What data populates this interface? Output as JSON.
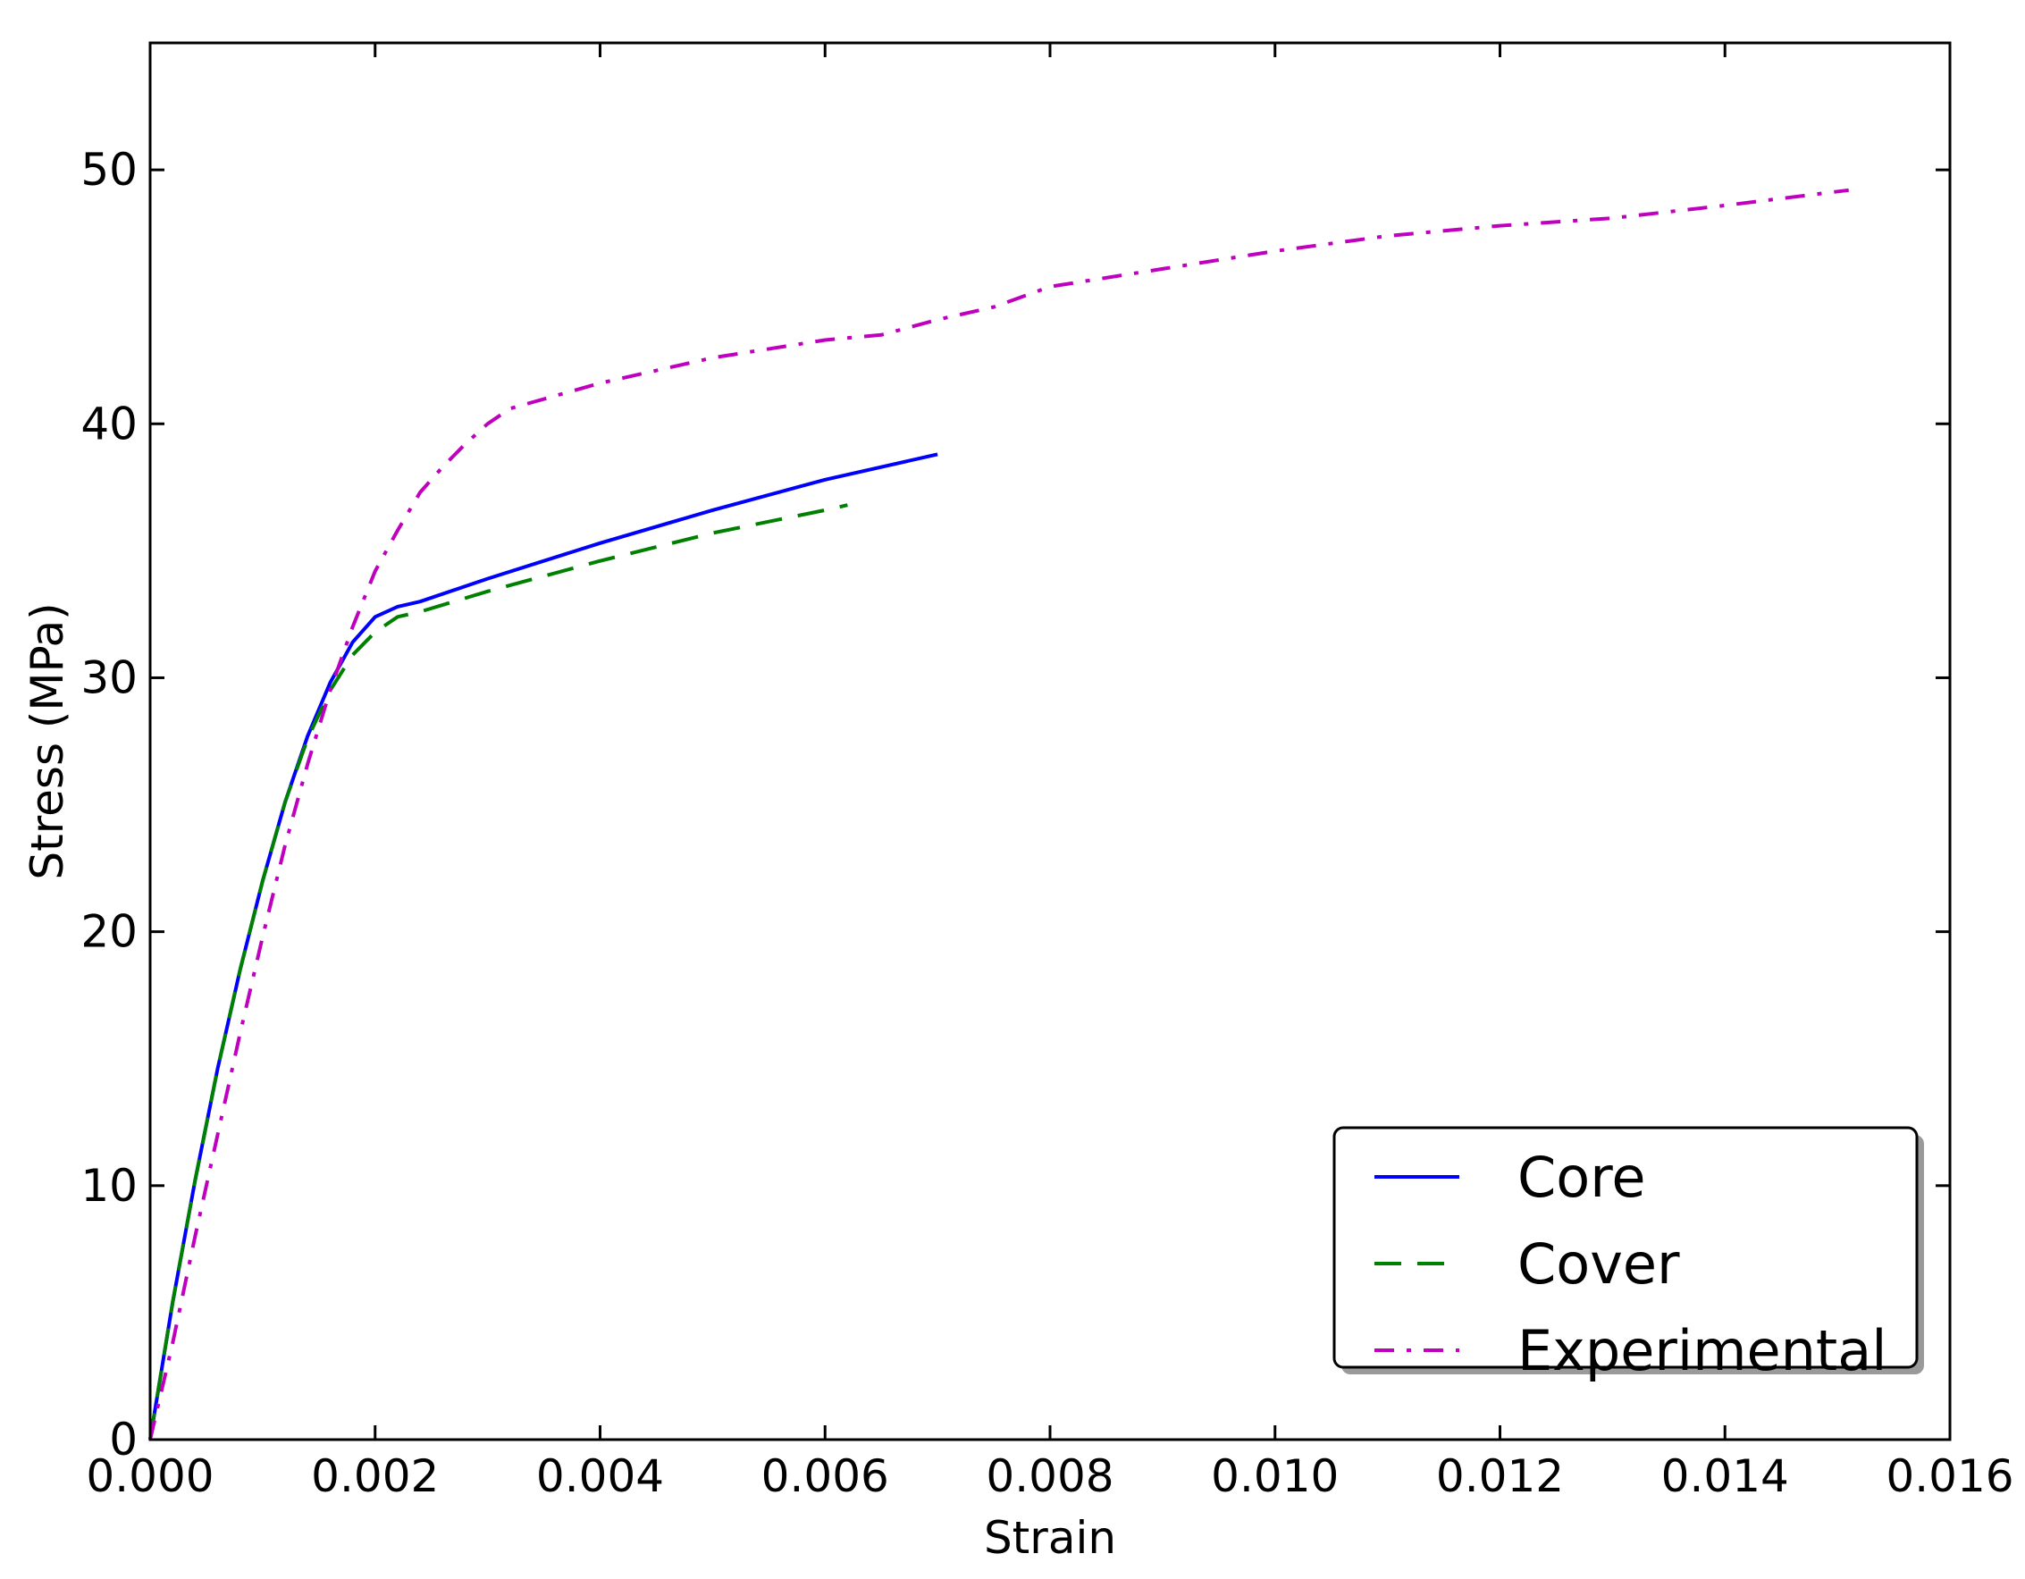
{
  "chart_data": {
    "type": "line",
    "title": "",
    "xlabel": "Strain",
    "ylabel": "Stress (MPa)",
    "xlim": [
      0,
      0.016
    ],
    "ylim": [
      0,
      55
    ],
    "x_ticks": [
      0,
      0.002,
      0.004,
      0.006,
      0.008,
      0.01,
      0.012,
      0.014,
      0.016
    ],
    "x_tick_labels": [
      "0.000",
      "0.002",
      "0.004",
      "0.006",
      "0.008",
      "0.010",
      "0.012",
      "0.014",
      "0.016"
    ],
    "y_ticks": [
      0,
      10,
      20,
      30,
      40,
      50
    ],
    "y_tick_labels": [
      "0",
      "10",
      "20",
      "30",
      "40",
      "50"
    ],
    "grid": false,
    "legend_position": "bottom-right",
    "series": [
      {
        "name": "Core",
        "color": "#0000ff",
        "style": "solid",
        "x": [
          0,
          0.0002,
          0.0004,
          0.0006,
          0.0008,
          0.001,
          0.0012,
          0.0014,
          0.0016,
          0.0018,
          0.002,
          0.0022,
          0.0024,
          0.003,
          0.004,
          0.005,
          0.006,
          0.007
        ],
        "y": [
          0,
          5.4,
          10.2,
          14.6,
          18.5,
          22.0,
          25.1,
          27.7,
          29.8,
          31.4,
          32.4,
          32.8,
          33.0,
          33.9,
          35.3,
          36.6,
          37.8,
          38.8
        ]
      },
      {
        "name": "Cover",
        "color": "#008000",
        "style": "dashed",
        "x": [
          0,
          0.0002,
          0.0004,
          0.0006,
          0.0008,
          0.001,
          0.0012,
          0.0014,
          0.0016,
          0.0018,
          0.002,
          0.0022,
          0.0024,
          0.003,
          0.004,
          0.005,
          0.006,
          0.0062
        ],
        "y": [
          0,
          5.4,
          10.2,
          14.6,
          18.5,
          22.0,
          25.1,
          27.6,
          29.5,
          30.9,
          31.8,
          32.4,
          32.6,
          33.4,
          34.6,
          35.7,
          36.6,
          36.8
        ]
      },
      {
        "name": "Experimental",
        "color": "#bf00bf",
        "style": "dashdot",
        "x": [
          0,
          0.0002,
          0.0004,
          0.0006,
          0.0008,
          0.001,
          0.0012,
          0.0014,
          0.0016,
          0.0018,
          0.002,
          0.0022,
          0.0024,
          0.0026,
          0.0028,
          0.003,
          0.0032,
          0.004,
          0.005,
          0.006,
          0.0065,
          0.007,
          0.0075,
          0.008,
          0.009,
          0.01,
          0.011,
          0.012,
          0.013,
          0.014,
          0.0151
        ],
        "y": [
          0,
          3.8,
          8.0,
          12.0,
          16.0,
          19.8,
          23.4,
          26.6,
          29.5,
          32.0,
          34.2,
          35.8,
          37.3,
          38.3,
          39.2,
          40.0,
          40.6,
          41.6,
          42.6,
          43.3,
          43.5,
          44.1,
          44.6,
          45.4,
          46.1,
          46.8,
          47.4,
          47.8,
          48.1,
          48.6,
          49.2
        ]
      }
    ]
  }
}
